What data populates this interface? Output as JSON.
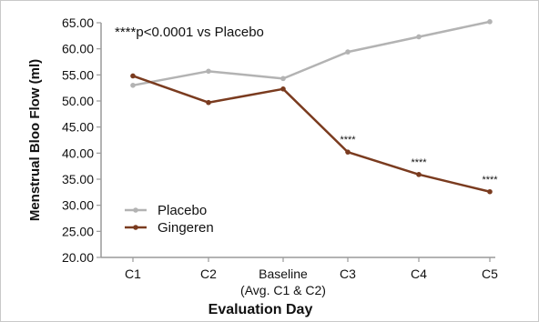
{
  "chart_data": {
    "type": "line",
    "title": "",
    "xlabel": "Evaluation Day",
    "ylabel": "Menstrual Bloo Flow (ml)",
    "categories": [
      "C1",
      "C2",
      "Baseline|(Avg. C1 & C2)",
      "C3",
      "C4",
      "C5"
    ],
    "series": [
      {
        "name": "Placebo",
        "color": "#b3b3b3",
        "values": [
          53.0,
          55.7,
          54.3,
          59.4,
          62.3,
          65.2
        ]
      },
      {
        "name": "Gingeren",
        "color": "#7a3b1f",
        "values": [
          54.8,
          49.7,
          52.3,
          40.2,
          35.9,
          32.6
        ]
      }
    ],
    "ylim": [
      20,
      65
    ],
    "yticks": [
      "20.00",
      "25.00",
      "30.00",
      "35.00",
      "40.00",
      "45.00",
      "50.00",
      "55.00",
      "60.00",
      "65.00"
    ],
    "annotation": "****p<0.0001 vs Placebo",
    "significance_labels": [
      {
        "category": "C3",
        "text": "****"
      },
      {
        "category": "C4",
        "text": "****"
      },
      {
        "category": "C5",
        "text": "****"
      }
    ],
    "legend": {
      "placement": "bottom-left",
      "entries": [
        "Placebo",
        "Gingeren"
      ]
    },
    "grid": false
  }
}
